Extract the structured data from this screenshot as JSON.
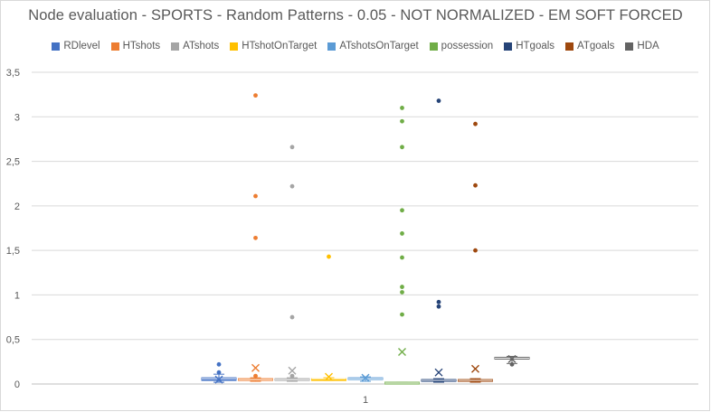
{
  "chart_data": {
    "type": "box",
    "title": "Node evaluation - SPORTS - Random Patterns - 0.05 - NOT NORMALIZED - EM SOFT FORCED",
    "categories": [
      "1"
    ],
    "ylim": [
      0,
      3.5
    ],
    "yticks": [
      "0",
      "0,5",
      "1",
      "1,5",
      "2",
      "2,5",
      "3",
      "3,5"
    ],
    "ytick_values": [
      0,
      0.5,
      1,
      1.5,
      2,
      2.5,
      3,
      3.5
    ],
    "grid": true,
    "legend_position": "top",
    "series": [
      {
        "name": "RDlevel",
        "color": "#4472c4",
        "q1": 0.04,
        "median": 0.06,
        "q3": 0.07,
        "whisker_low": 0.02,
        "whisker_high": 0.11,
        "mean": 0.05,
        "outliers": [
          0.22,
          0.13
        ]
      },
      {
        "name": "HTshots",
        "color": "#ed7d31",
        "q1": 0.04,
        "median": 0.05,
        "q3": 0.06,
        "whisker_low": 0.03,
        "whisker_high": 0.07,
        "mean": 0.18,
        "outliers": [
          3.24,
          2.11,
          1.64,
          0.09
        ]
      },
      {
        "name": "ATshots",
        "color": "#a5a5a5",
        "q1": 0.04,
        "median": 0.05,
        "q3": 0.06,
        "whisker_low": 0.03,
        "whisker_high": 0.07,
        "mean": 0.15,
        "outliers": [
          2.66,
          2.22,
          0.75,
          0.09
        ]
      },
      {
        "name": "HTshotOnTarget",
        "color": "#ffc000",
        "q1": 0.05,
        "median": 0.06,
        "q3": 0.06,
        "whisker_low": 0.04,
        "whisker_high": 0.07,
        "mean": 0.08,
        "outliers": [
          1.43
        ]
      },
      {
        "name": "ATshotsOnTarget",
        "color": "#5b9bd5",
        "q1": 0.05,
        "median": 0.06,
        "q3": 0.07,
        "whisker_low": 0.03,
        "whisker_high": 0.08,
        "mean": 0.07,
        "outliers": []
      },
      {
        "name": "possession",
        "color": "#70ad47",
        "q1": 0.01,
        "median": 0.01,
        "q3": 0.02,
        "whisker_low": 0.0,
        "whisker_high": 0.02,
        "mean": 0.36,
        "outliers": [
          3.1,
          2.95,
          2.66,
          1.95,
          1.69,
          1.42,
          1.09,
          1.03,
          0.78
        ]
      },
      {
        "name": "HTgoals",
        "color": "#264478",
        "q1": 0.03,
        "median": 0.04,
        "q3": 0.05,
        "whisker_low": 0.02,
        "whisker_high": 0.06,
        "mean": 0.13,
        "outliers": [
          3.18,
          0.92,
          0.87
        ]
      },
      {
        "name": "ATgoals",
        "color": "#9e480e",
        "q1": 0.03,
        "median": 0.04,
        "q3": 0.05,
        "whisker_low": 0.02,
        "whisker_high": 0.06,
        "mean": 0.17,
        "outliers": [
          2.92,
          2.23,
          1.5
        ]
      },
      {
        "name": "HDA",
        "color": "#636363",
        "q1": 0.28,
        "median": 0.29,
        "q3": 0.3,
        "whisker_low": 0.23,
        "whisker_high": 0.31,
        "mean": 0.28,
        "outliers": [
          0.22
        ]
      }
    ]
  }
}
